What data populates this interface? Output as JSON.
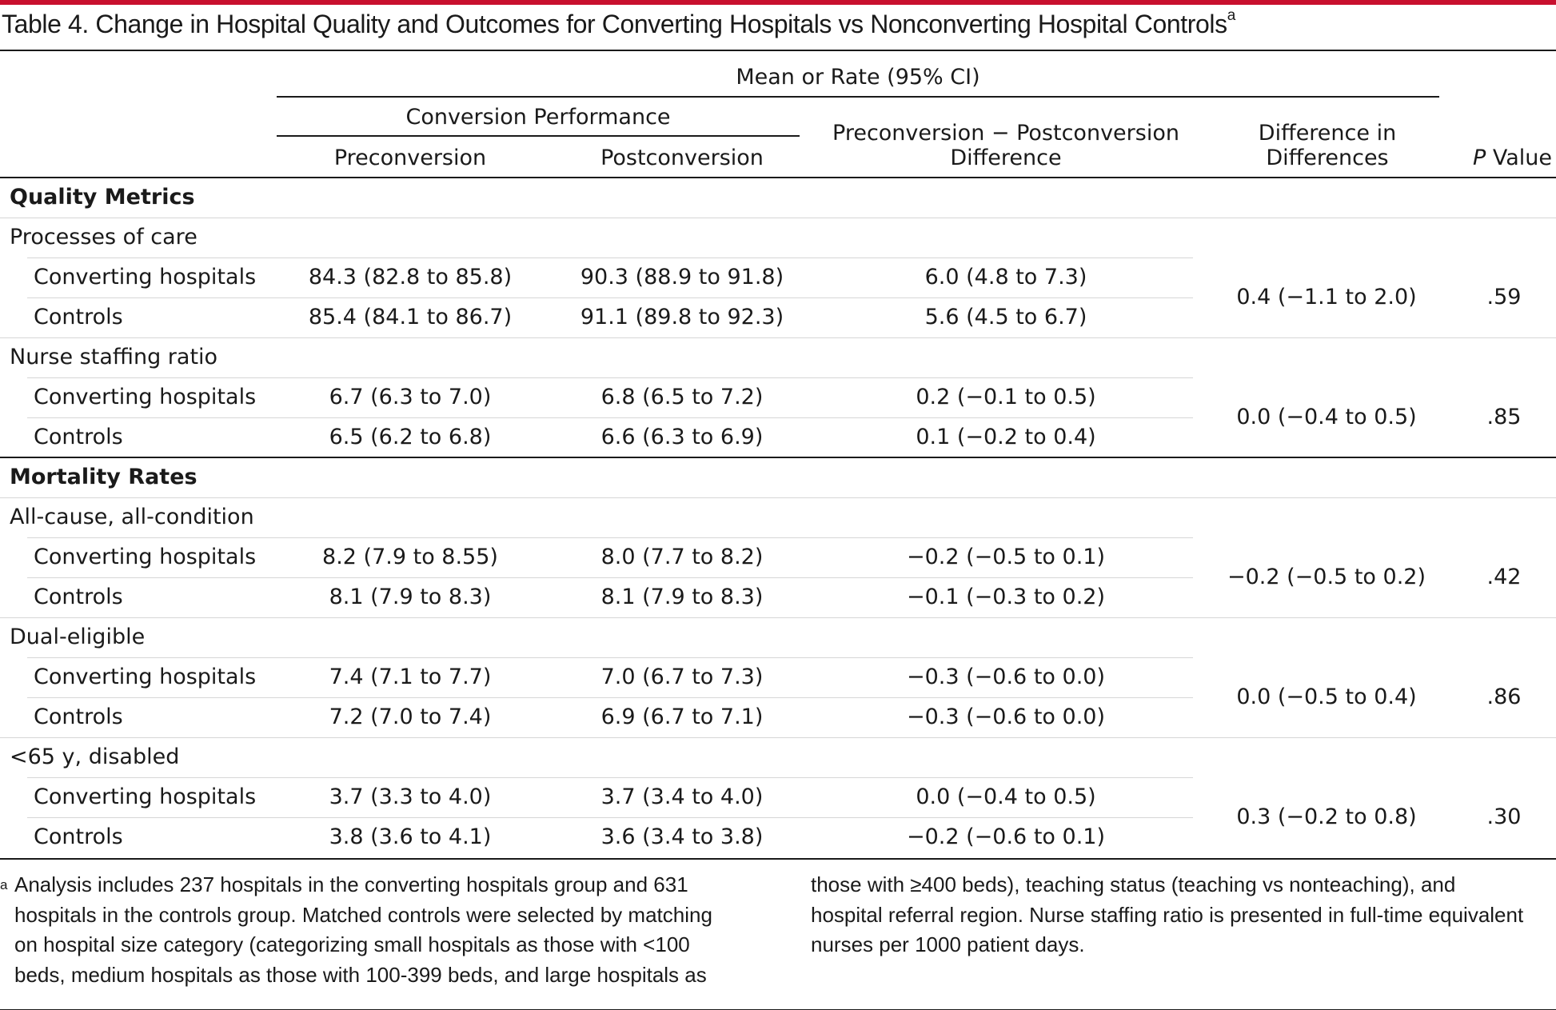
{
  "title": "Table 4. Change in Hospital Quality and Outcomes for Converting Hospitals vs Nonconverting Hospital Controls",
  "title_sup": "a",
  "header": {
    "mean_rate": "Mean or Rate (95% CI)",
    "conversion_performance": "Conversion Performance",
    "preconversion": "Preconversion",
    "postconversion": "Postconversion",
    "difference_l1": "Preconversion − Postconversion",
    "difference_l2": "Difference",
    "diff_in_diff_l1": "Difference in",
    "diff_in_diff_l2": "Differences",
    "p_value_p": "P",
    "p_value_rest": " Value"
  },
  "sections": [
    {
      "label": "Quality Metrics",
      "groups": [
        {
          "label": "Processes of care",
          "did": "0.4 (−1.1 to 2.0)",
          "p": ".59",
          "rows": [
            {
              "label": "Converting hospitals",
              "pre": "84.3 (82.8 to 85.8)",
              "post": "90.3 (88.9 to 91.8)",
              "diff": "6.0 (4.8 to 7.3)"
            },
            {
              "label": "Controls",
              "pre": "85.4 (84.1 to 86.7)",
              "post": "91.1 (89.8 to 92.3)",
              "diff": "5.6 (4.5 to 6.7)"
            }
          ]
        },
        {
          "label": "Nurse staffing ratio",
          "did": "0.0 (−0.4 to 0.5)",
          "p": ".85",
          "rows": [
            {
              "label": "Converting hospitals",
              "pre": "6.7 (6.3 to 7.0)",
              "post": "6.8 (6.5 to 7.2)",
              "diff": "0.2 (−0.1 to 0.5)"
            },
            {
              "label": "Controls",
              "pre": "6.5 (6.2 to 6.8)",
              "post": "6.6 (6.3 to 6.9)",
              "diff": "0.1 (−0.2 to 0.4)"
            }
          ]
        }
      ]
    },
    {
      "label": "Mortality Rates",
      "groups": [
        {
          "label": "All-cause, all-condition",
          "did": "−0.2 (−0.5 to 0.2)",
          "p": ".42",
          "rows": [
            {
              "label": "Converting hospitals",
              "pre": "8.2 (7.9 to 8.55)",
              "post": "8.0 (7.7 to 8.2)",
              "diff": "−0.2 (−0.5 to 0.1)"
            },
            {
              "label": "Controls",
              "pre": "8.1 (7.9 to 8.3)",
              "post": "8.1 (7.9 to 8.3)",
              "diff": "−0.1 (−0.3 to 0.2)"
            }
          ]
        },
        {
          "label": "Dual-eligible",
          "did": "0.0 (−0.5 to 0.4)",
          "p": ".86",
          "rows": [
            {
              "label": "Converting hospitals",
              "pre": "7.4 (7.1 to 7.7)",
              "post": "7.0 (6.7 to 7.3)",
              "diff": "−0.3 (−0.6 to 0.0)"
            },
            {
              "label": "Controls",
              "pre": "7.2 (7.0 to 7.4)",
              "post": "6.9 (6.7 to 7.1)",
              "diff": "−0.3 (−0.6 to 0.0)"
            }
          ]
        },
        {
          "label": "<65 y, disabled",
          "did": "0.3 (−0.2 to 0.8)",
          "p": ".30",
          "rows": [
            {
              "label": "Converting hospitals",
              "pre": "3.7 (3.3 to 4.0)",
              "post": "3.7 (3.4 to 4.0)",
              "diff": "0.0 (−0.4 to 0.5)"
            },
            {
              "label": "Controls",
              "pre": "3.8 (3.6 to 4.1)",
              "post": "3.6 (3.4 to 3.8)",
              "diff": "−0.2 (−0.6 to 0.1)"
            }
          ]
        }
      ]
    }
  ],
  "footnote": {
    "marker": "a",
    "col1_lines": [
      "Analysis includes 237 hospitals in the converting hospitals group and 631",
      "hospitals in the controls group. Matched controls were selected by matching",
      "on hospital size category (categorizing small hospitals as those with <100",
      "beds, medium hospitals as those with 100-399 beds, and large hospitals as"
    ],
    "col2_lines": [
      "those with ≥400 beds), teaching status (teaching vs nonteaching), and",
      "hospital referral region. Nurse staffing ratio is presented in full-time equivalent",
      "nurses per 1000 patient days."
    ]
  },
  "colors": {
    "accent_bar": "#c8102e",
    "rule": "#1a1a1a",
    "divider": "#d6d6d6"
  }
}
